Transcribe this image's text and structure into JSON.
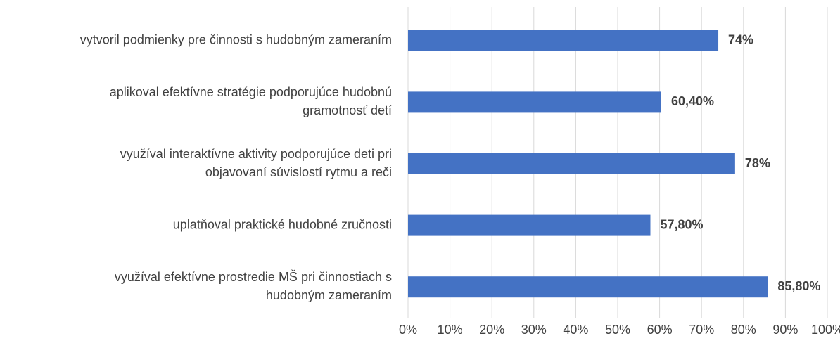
{
  "chart_data": {
    "type": "bar",
    "orientation": "horizontal",
    "categories": [
      [
        "vytvoril podmienky pre činnosti s hudobným zameraním"
      ],
      [
        "aplikoval efektívne stratégie podporujúce hudobnú",
        "gramotnosť detí"
      ],
      [
        "využíval interaktívne aktivity podporujúce deti pri",
        "objavovaní súvislostí rytmu a reči"
      ],
      [
        "uplatňoval praktické hudobné zručnosti"
      ],
      [
        "využíval efektívne prostredie MŠ pri činnostiach s",
        "hudobným zameraním"
      ]
    ],
    "values": [
      74,
      60.4,
      78,
      57.8,
      85.8
    ],
    "value_labels": [
      "74%",
      "60,40%",
      "78%",
      "57,80%",
      "85,80%"
    ],
    "color": "#4472c4",
    "xlim": [
      0,
      100
    ],
    "xticks": [
      {
        "value": 0,
        "label": "0%"
      },
      {
        "value": 10,
        "label": "10%"
      },
      {
        "value": 20,
        "label": "20%"
      },
      {
        "value": 30,
        "label": "30%"
      },
      {
        "value": 40,
        "label": "40%"
      },
      {
        "value": 50,
        "label": "50%"
      },
      {
        "value": 60,
        "label": "60%"
      },
      {
        "value": 70,
        "label": "70%"
      },
      {
        "value": 80,
        "label": "80%"
      },
      {
        "value": 90,
        "label": "90%"
      },
      {
        "value": 100,
        "label": "100%"
      }
    ],
    "grid": true
  }
}
